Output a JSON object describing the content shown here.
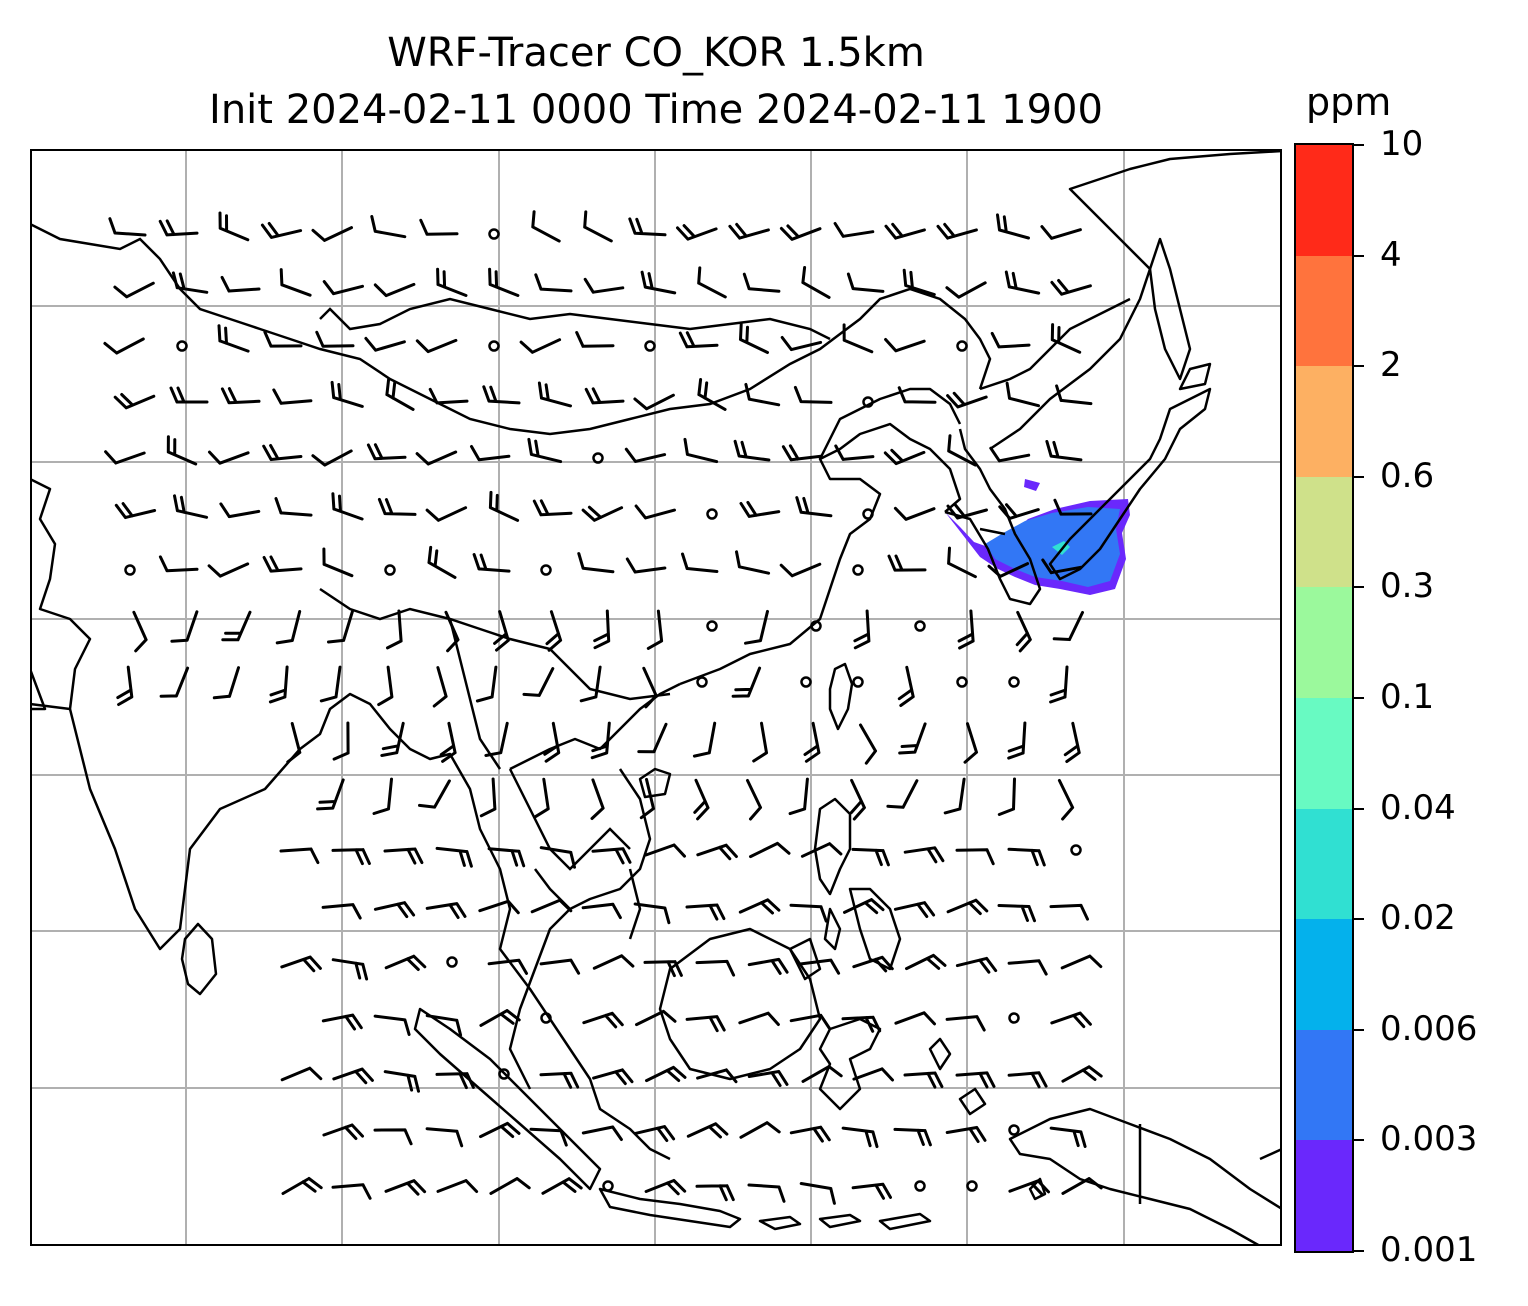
{
  "title_line1": "WRF-Tracer CO_KOR 1.5km",
  "title_line2": "Init 2024-02-11 0000 Time 2024-02-11 1900",
  "colorbar": {
    "unit": "ppm",
    "levels": [
      "0.001",
      "0.003",
      "0.006",
      "0.02",
      "0.04",
      "0.1",
      "0.3",
      "0.6",
      "2",
      "4",
      "10"
    ],
    "colors": [
      "#6a28fc",
      "#3277f5",
      "#04b1ec",
      "#30e0d2",
      "#68fac2",
      "#9bf99c",
      "#cfe18a",
      "#fdb062",
      "#ff733d",
      "#ff2a19"
    ]
  },
  "map": {
    "region": "East / Southeast Asia",
    "features": [
      "coastlines",
      "country-borders",
      "gridlines",
      "wind-barbs",
      "calm-wind-circles",
      "tracer-plume"
    ],
    "plume_region": "Korean Peninsula / East Sea",
    "plume_max_level": "0.04",
    "line_color": "#000000",
    "grid_color": "#b0b0b0"
  }
}
